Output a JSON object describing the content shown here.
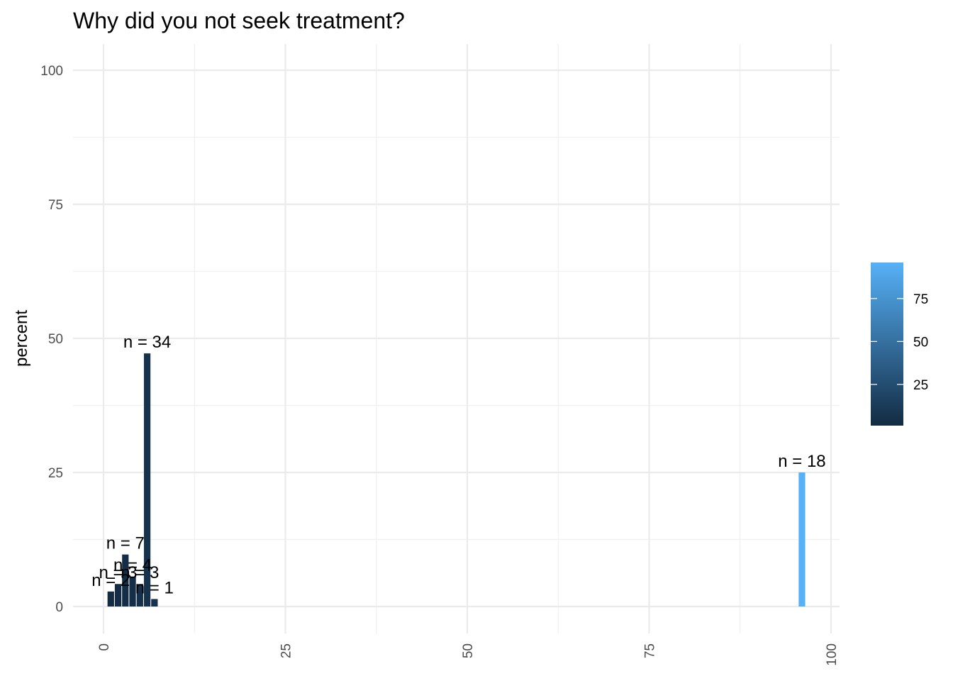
{
  "chart_data": {
    "type": "bar",
    "title": "Why did you not seek treatment?",
    "xlabel": "",
    "ylabel": "percent",
    "xlim": [
      0,
      100
    ],
    "ylim": [
      0,
      100
    ],
    "x_ticks": [
      0,
      25,
      50,
      75,
      100
    ],
    "y_ticks": [
      0,
      25,
      50,
      75,
      100
    ],
    "grid": true,
    "bars": [
      {
        "x": 1,
        "value": 2.8,
        "label": "n = 2"
      },
      {
        "x": 2,
        "value": 4.2,
        "label": "n = 3"
      },
      {
        "x": 3,
        "value": 9.7,
        "label": "n = 7"
      },
      {
        "x": 4,
        "value": 5.6,
        "label": "n = 4"
      },
      {
        "x": 5,
        "value": 4.2,
        "label": "n = 3"
      },
      {
        "x": 6,
        "value": 47.2,
        "label": "n = 34"
      },
      {
        "x": 7,
        "value": 1.4,
        "label": "n = 1"
      },
      {
        "x": 96,
        "value": 25.0,
        "label": "n = 18"
      }
    ],
    "legend": {
      "placement": "right",
      "title": "",
      "ticks": [
        25,
        50,
        75
      ],
      "range": [
        1,
        96
      ],
      "color_low": "#132b43",
      "color_high": "#56b1f7"
    }
  }
}
